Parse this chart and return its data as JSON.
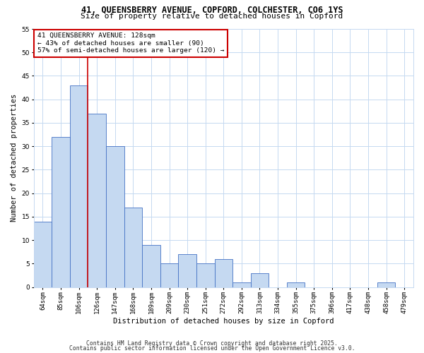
{
  "title_line1": "41, QUEENSBERRY AVENUE, COPFORD, COLCHESTER, CO6 1YS",
  "title_line2": "Size of property relative to detached houses in Copford",
  "xlabel": "Distribution of detached houses by size in Copford",
  "ylabel": "Number of detached properties",
  "categories": [
    "64sqm",
    "85sqm",
    "106sqm",
    "126sqm",
    "147sqm",
    "168sqm",
    "189sqm",
    "209sqm",
    "230sqm",
    "251sqm",
    "272sqm",
    "292sqm",
    "313sqm",
    "334sqm",
    "355sqm",
    "375sqm",
    "396sqm",
    "417sqm",
    "438sqm",
    "458sqm",
    "479sqm"
  ],
  "values": [
    14,
    32,
    43,
    37,
    30,
    17,
    9,
    5,
    7,
    5,
    6,
    1,
    3,
    0,
    1,
    0,
    0,
    0,
    0,
    1,
    0
  ],
  "bar_color": "#c5d9f1",
  "bar_edge_color": "#4472c4",
  "vline_x": 2.5,
  "vline_color": "#cc0000",
  "annotation_text": "41 QUEENSBERRY AVENUE: 128sqm\n← 43% of detached houses are smaller (90)\n57% of semi-detached houses are larger (120) →",
  "annotation_box_edge_color": "#cc0000",
  "ylim": [
    0,
    55
  ],
  "yticks": [
    0,
    5,
    10,
    15,
    20,
    25,
    30,
    35,
    40,
    45,
    50,
    55
  ],
  "footer_line1": "Contains HM Land Registry data © Crown copyright and database right 2025.",
  "footer_line2": "Contains public sector information licensed under the Open Government Licence v3.0.",
  "background_color": "#ffffff",
  "grid_color": "#c5d9f1",
  "title_fontsize": 8.5,
  "subtitle_fontsize": 8.0,
  "axis_label_fontsize": 7.5,
  "tick_fontsize": 6.5,
  "annotation_fontsize": 6.8,
  "footer_fontsize": 5.8
}
